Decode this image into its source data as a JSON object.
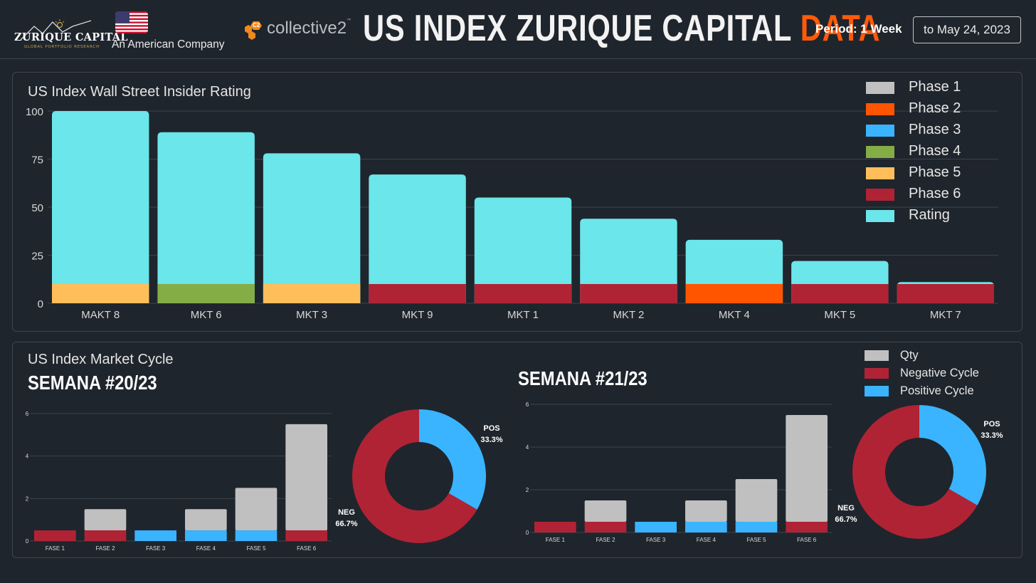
{
  "header": {
    "brand_name": "ZURIQUE CAPITAL",
    "brand_tagline": "GLOBAL PORTFOLIO RESEARCH",
    "company_note": "An American Company",
    "partner_logo": "collective2",
    "partner_badge": "C2",
    "partner_tm": "™",
    "title_main": "US INDEX ZURIQUE CAPITAL ",
    "title_accent": "DATA",
    "period_label": "Period: 1 Week",
    "date_range": "to May 24, 2023"
  },
  "colors": {
    "background": "#1f252c",
    "phase1": "#c0c0c0",
    "phase2": "#ff5500",
    "phase3": "#3ab4ff",
    "phase4": "#84ae45",
    "phase5": "#ffbe5a",
    "phase6": "#b02335",
    "rating": "#6be6ea",
    "accent": "#ff5a0a"
  },
  "rating_chart": {
    "title": "US Index Wall Street Insider Rating",
    "legend": [
      "Phase 1",
      "Phase 2",
      "Phase 3",
      "Phase 4",
      "Phase 5",
      "Phase 6",
      "Rating"
    ]
  },
  "cycle_section": {
    "title": "US Index Market Cycle",
    "legend": [
      "Qty",
      "Negative Cycle",
      "Positive Cycle"
    ]
  },
  "chart_data": [
    {
      "type": "bar",
      "id": "rating",
      "title": "US Index Wall Street Insider Rating",
      "categories": [
        "MAKT 8",
        "MKT 6",
        "MKT 3",
        "MKT 9",
        "MKT 1",
        "MKT 2",
        "MKT 4",
        "MKT 5",
        "MKT 7"
      ],
      "values": [
        100,
        89,
        78,
        67,
        55,
        44,
        33,
        22,
        11
      ],
      "phase": [
        5,
        4,
        5,
        6,
        6,
        6,
        2,
        6,
        6
      ],
      "phase_band": 10,
      "ylim": [
        0,
        100
      ],
      "yticks": [
        0,
        25,
        50,
        75,
        100
      ],
      "xlabel": "",
      "ylabel": ""
    },
    {
      "type": "bar",
      "id": "week20",
      "title": "SEMANA #20/23",
      "categories": [
        "FASE 1",
        "FASE 2",
        "FASE 3",
        "FASE 4",
        "FASE 5",
        "FASE 6"
      ],
      "series": [
        {
          "name": "Qty",
          "values": [
            0,
            1,
            0,
            1,
            2,
            5
          ]
        },
        {
          "name": "Cycle",
          "values": [
            0.5,
            0.5,
            0.5,
            0.5,
            0.5,
            0.5
          ],
          "colors": [
            "neg",
            "neg",
            "pos",
            "pos",
            "pos",
            "neg"
          ]
        }
      ],
      "ylim": [
        0,
        6
      ],
      "yticks": [
        0,
        2,
        4,
        6
      ]
    },
    {
      "type": "pie",
      "id": "pie20",
      "labels": [
        "POS",
        "NEG"
      ],
      "values": [
        33.3,
        66.7
      ],
      "value_labels": [
        "33.3%",
        "66.7%"
      ]
    },
    {
      "type": "bar",
      "id": "week21",
      "title": "SEMANA #21/23",
      "categories": [
        "FASE 1",
        "FASE 2",
        "FASE 3",
        "FASE 4",
        "FASE 5",
        "FASE 6"
      ],
      "series": [
        {
          "name": "Qty",
          "values": [
            0,
            1,
            0,
            1,
            2,
            5
          ]
        },
        {
          "name": "Cycle",
          "values": [
            0.5,
            0.5,
            0.5,
            0.5,
            0.5,
            0.5
          ],
          "colors": [
            "neg",
            "neg",
            "pos",
            "pos",
            "pos",
            "neg"
          ]
        }
      ],
      "ylim": [
        0,
        6
      ],
      "yticks": [
        0,
        2,
        4,
        6
      ]
    },
    {
      "type": "pie",
      "id": "pie21",
      "labels": [
        "POS",
        "NEG"
      ],
      "values": [
        33.3,
        66.7
      ],
      "value_labels": [
        "33.3%",
        "66.7%"
      ]
    }
  ]
}
